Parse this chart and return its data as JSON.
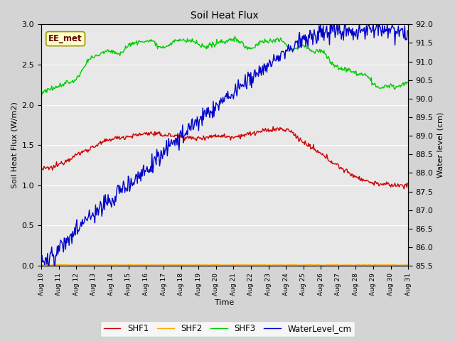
{
  "title": "Soil Heat Flux",
  "ylabel_left": "Soil Heat Flux (W/m2)",
  "ylabel_right": "Water level (cm)",
  "xlabel": "Time",
  "annotation_text": "EE_met",
  "ylim_left": [
    0.0,
    3.0
  ],
  "ylim_right": [
    85.5,
    92.0
  ],
  "yticks_left": [
    0.0,
    0.5,
    1.0,
    1.5,
    2.0,
    2.5,
    3.0
  ],
  "yticks_right": [
    85.5,
    86.0,
    86.5,
    87.0,
    87.5,
    88.0,
    88.5,
    89.0,
    89.5,
    90.0,
    90.5,
    91.0,
    91.5,
    92.0
  ],
  "colors": {
    "SHF1": "#cc0000",
    "SHF2": "#ffaa00",
    "SHF3": "#00cc00",
    "WaterLevel_cm": "#0000cc"
  },
  "background_color": "#d4d4d4",
  "plot_bg_color": "#e8e8e8",
  "grid_color": "#ffffff",
  "linewidth": 1.0
}
